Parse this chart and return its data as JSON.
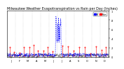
{
  "title": "Milwaukee Weather Evapotranspiration vs Rain per Day (Inches)",
  "title_fontsize": 3.5,
  "background_color": "#ffffff",
  "legend_labels": [
    "ET",
    "Rain"
  ],
  "legend_colors": [
    "#0000ff",
    "#ff0000"
  ],
  "ylim": [
    0,
    1.0
  ],
  "ylabel_fontsize": 3.0,
  "xlabel_fontsize": 3.0,
  "tick_fontsize": 2.5,
  "num_days": 365
}
